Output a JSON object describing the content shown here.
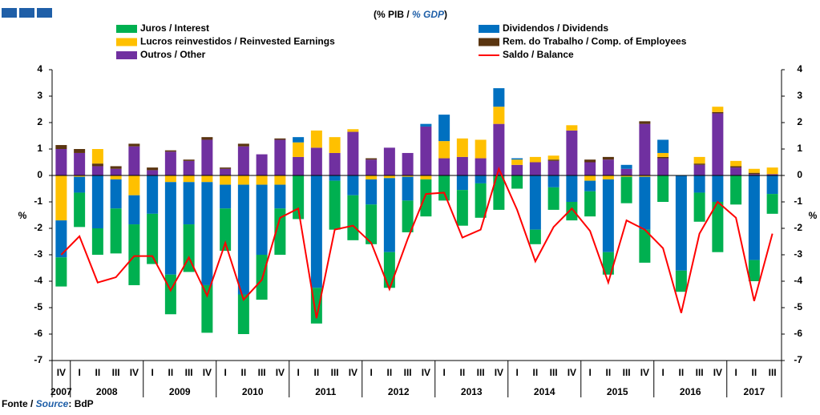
{
  "chart_data": {
    "type": "bar",
    "subtitle": [
      "(% PIB / ",
      "% GDP",
      ")"
    ],
    "ylabel": "%",
    "y2label": "%",
    "source": [
      "Fonte / ",
      "Source",
      ": BdP"
    ],
    "categories": [
      "IV",
      "I",
      "II",
      "III",
      "IV",
      "I",
      "II",
      "III",
      "IV",
      "I",
      "II",
      "III",
      "IV",
      "I",
      "II",
      "III",
      "IV",
      "I",
      "II",
      "III",
      "IV",
      "I",
      "II",
      "III",
      "IV",
      "I",
      "II",
      "III",
      "IV",
      "I",
      "II",
      "III",
      "IV",
      "I",
      "II",
      "III",
      "IV",
      "I",
      "II",
      "III"
    ],
    "years": [
      "2007",
      "2008",
      "2009",
      "2010",
      "2011",
      "2012",
      "2013",
      "2014",
      "2015",
      "2016",
      "2017"
    ],
    "ylim": [
      -7,
      4
    ],
    "yticks": [
      -7,
      -6,
      -5,
      -4,
      -3,
      -2,
      -1,
      0,
      1,
      2,
      3,
      4
    ],
    "y2lim": [
      -7,
      4
    ],
    "y2ticks": [
      -7,
      -6,
      -5,
      -4,
      -3,
      -2,
      -1,
      0,
      1,
      2,
      3,
      4
    ],
    "series": [
      {
        "name": "Juros / Interest",
        "color": "#00b050",
        "values": [
          -1.1,
          -1.3,
          -1.0,
          -1.7,
          -2.3,
          -1.9,
          -1.5,
          -1.8,
          -1.8,
          -1.6,
          -1.5,
          -1.7,
          -1.75,
          -1.65,
          -1.35,
          -1.85,
          -1.7,
          -1.5,
          -1.35,
          -1.2,
          -1.4,
          -0.95,
          -1.35,
          -1.3,
          -1.3,
          -0.5,
          -0.55,
          -0.85,
          -0.7,
          -0.95,
          -0.85,
          -1.0,
          -1.25,
          -1.0,
          -0.8,
          -1.1,
          -1.9,
          -1.1,
          -0.8,
          -0.75
        ]
      },
      {
        "name": "Dividendos / Dividends",
        "color": "#0070c0",
        "values": [
          -1.4,
          -0.6,
          -2.0,
          -1.1,
          -1.1,
          -1.45,
          -3.5,
          -1.6,
          -3.9,
          -0.9,
          -4.15,
          -2.65,
          -0.9,
          0.2,
          -4.25,
          -0.2,
          -0.75,
          -0.95,
          -2.8,
          -0.9,
          0.1,
          1.0,
          -0.55,
          -0.3,
          0.7,
          0.05,
          -2.05,
          -0.45,
          -1.0,
          -0.4,
          -2.75,
          0.15,
          -2.0,
          0.5,
          -3.6,
          -0.65,
          -1.0,
          0,
          -3.2,
          -0.7
        ]
      },
      {
        "name": "Lucros reinvestidos / Reinvested Earnings",
        "color": "#ffc000",
        "values": [
          -1.7,
          -0.05,
          0.55,
          -0.15,
          -0.75,
          0,
          -0.25,
          -0.25,
          -0.25,
          -0.35,
          -0.35,
          -0.35,
          -0.35,
          0.55,
          0.65,
          0.6,
          0.1,
          -0.15,
          -0.1,
          -0.05,
          -0.15,
          0.65,
          0.7,
          0.7,
          0.65,
          0.2,
          0.2,
          0.15,
          0.2,
          -0.2,
          -0.15,
          -0.05,
          -0.05,
          0.15,
          0,
          0.25,
          0.2,
          0.2,
          0.15,
          0.25
        ]
      },
      {
        "name": "Rem. do Trabalho / Comp. of Employees",
        "color": "#5a3510",
        "values": [
          0.15,
          0.15,
          0.1,
          0.1,
          0.1,
          0.1,
          0.05,
          0.05,
          0.1,
          0.05,
          0.1,
          0,
          0.05,
          0,
          0,
          0,
          0,
          0.05,
          0,
          0,
          0,
          0,
          0,
          0,
          0,
          0,
          0,
          0.05,
          0,
          0.1,
          0.1,
          0,
          0.1,
          0.05,
          0,
          0.05,
          0.05,
          0.05,
          0.05,
          0
        ]
      },
      {
        "name": "Outros / Other",
        "color": "#7030a0",
        "values": [
          1.0,
          0.85,
          0.35,
          0.25,
          1.1,
          0.2,
          0.9,
          0.55,
          1.35,
          0.25,
          1.1,
          0.8,
          1.35,
          0.7,
          1.05,
          0.85,
          1.65,
          0.6,
          1.05,
          0.85,
          1.85,
          0.65,
          0.7,
          0.65,
          1.95,
          0.4,
          0.5,
          0.55,
          1.7,
          0.5,
          0.6,
          0.25,
          1.95,
          0.65,
          0,
          0.4,
          2.35,
          0.3,
          0.05,
          0.05
        ]
      },
      {
        "name": "Saldo / Balance",
        "color": "#ff0000",
        "type": "line",
        "values": [
          -3.0,
          -2.3,
          -4.05,
          -3.85,
          -3.05,
          -3.05,
          -4.35,
          -3.1,
          -4.55,
          -2.55,
          -4.7,
          -3.95,
          -1.6,
          -1.25,
          -5.4,
          -2.05,
          -1.9,
          -2.55,
          -4.3,
          -2.4,
          -0.7,
          -0.65,
          -2.35,
          -2.05,
          0.25,
          -1.3,
          -3.25,
          -1.95,
          -1.25,
          -2.1,
          -4.05,
          -1.7,
          -2.05,
          -2.75,
          -5.2,
          -2.2,
          -1.0,
          -1.6,
          -4.75,
          -2.2
        ]
      }
    ]
  }
}
